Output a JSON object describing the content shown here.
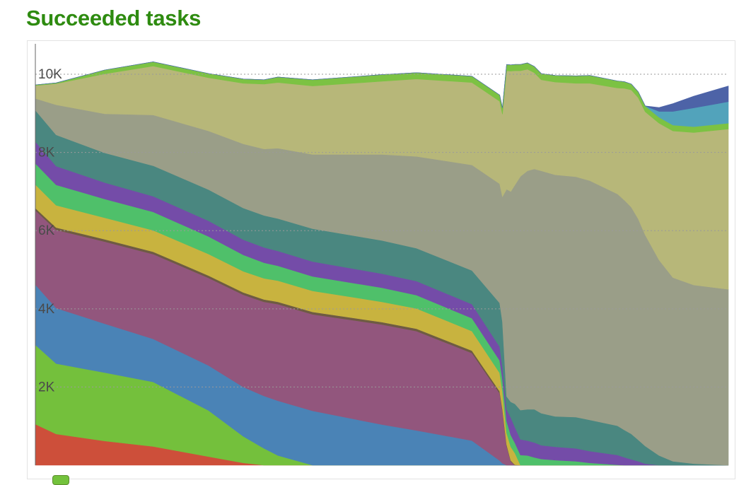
{
  "title": "Succeeded tasks",
  "colors": {
    "title": "#2e8b10",
    "grid": "#9a9a9a",
    "axis": "#666666",
    "tick_text": "#4a4a4a",
    "legend_swatch": "#73c23c"
  },
  "chart_data": {
    "type": "area",
    "stacked": true,
    "title": "Succeeded tasks",
    "xlabel": "",
    "ylabel": "",
    "ylim": [
      0,
      10200
    ],
    "yticks": [
      2000,
      4000,
      6000,
      8000,
      10000
    ],
    "ytick_labels": [
      "2K",
      "4K",
      "6K",
      "8K",
      "10K"
    ],
    "grid": true,
    "x": [
      0,
      3,
      10,
      17,
      25,
      30,
      33,
      35,
      40,
      50,
      55,
      63,
      67,
      67.4,
      68,
      68.6,
      69.2,
      70,
      71,
      72,
      73,
      75,
      78,
      80,
      84,
      85,
      86,
      87,
      88,
      90,
      92,
      95,
      100
    ],
    "series": [
      {
        "name": "",
        "color": "#cd4f3a",
        "values": [
          1050,
          800,
          620,
          480,
          220,
          60,
          0,
          0,
          0,
          0,
          0,
          0,
          0,
          0,
          0,
          0,
          0,
          0,
          0,
          0,
          0,
          0,
          0,
          0,
          0,
          0,
          0,
          0,
          0,
          0,
          0,
          0,
          0
        ]
      },
      {
        "name": "",
        "color": "#74c03c",
        "values": [
          2030,
          1800,
          1750,
          1650,
          1180,
          680,
          430,
          250,
          0,
          0,
          0,
          0,
          0,
          0,
          0,
          0,
          0,
          0,
          0,
          0,
          0,
          0,
          0,
          0,
          0,
          0,
          0,
          0,
          0,
          0,
          0,
          0,
          0
        ]
      },
      {
        "name": "",
        "color": "#4a83b6",
        "values": [
          1540,
          1420,
          1250,
          1100,
          1150,
          1260,
          1340,
          1400,
          1390,
          1040,
          890,
          630,
          120,
          50,
          0,
          0,
          0,
          0,
          0,
          0,
          0,
          0,
          0,
          0,
          0,
          0,
          0,
          0,
          0,
          0,
          0,
          0,
          0
        ]
      },
      {
        "name": "",
        "color": "#92567d",
        "values": [
          1900,
          2000,
          2100,
          2170,
          2240,
          2360,
          2410,
          2470,
          2470,
          2560,
          2540,
          2240,
          1720,
          1340,
          500,
          100,
          0,
          0,
          0,
          0,
          0,
          0,
          0,
          0,
          0,
          0,
          0,
          0,
          0,
          0,
          0,
          0,
          0
        ]
      },
      {
        "name": "",
        "color": "#6e5b43",
        "values": [
          60,
          60,
          60,
          60,
          60,
          60,
          60,
          60,
          60,
          60,
          60,
          60,
          50,
          50,
          30,
          20,
          10,
          0,
          0,
          0,
          0,
          0,
          0,
          0,
          0,
          0,
          0,
          0,
          0,
          0,
          0,
          0,
          0
        ]
      },
      {
        "name": "",
        "color": "#c8b33f",
        "values": [
          600,
          570,
          550,
          550,
          550,
          540,
          540,
          540,
          540,
          520,
          520,
          500,
          470,
          450,
          300,
          350,
          300,
          0,
          0,
          0,
          0,
          0,
          0,
          0,
          0,
          0,
          0,
          0,
          0,
          0,
          0,
          0,
          0
        ]
      },
      {
        "name": "",
        "color": "#4fc06a",
        "values": [
          540,
          520,
          480,
          470,
          450,
          420,
          400,
          380,
          370,
          360,
          340,
          330,
          320,
          310,
          300,
          300,
          260,
          260,
          250,
          200,
          160,
          130,
          100,
          60,
          10,
          0,
          0,
          0,
          0,
          0,
          0,
          0,
          0
        ]
      },
      {
        "name": "",
        "color": "#744ca8",
        "values": [
          560,
          480,
          420,
          400,
          400,
          390,
          390,
          380,
          380,
          360,
          360,
          360,
          350,
          320,
          300,
          450,
          400,
          400,
          380,
          380,
          350,
          340,
          330,
          300,
          250,
          200,
          150,
          100,
          40,
          0,
          0,
          0,
          0
        ]
      },
      {
        "name": "",
        "color": "#4a8780",
        "values": [
          800,
          800,
          760,
          780,
          800,
          810,
          820,
          830,
          840,
          850,
          840,
          860,
          1120,
          1150,
          330,
          400,
          600,
          750,
          800,
          850,
          820,
          780,
          800,
          800,
          750,
          700,
          650,
          550,
          450,
          250,
          100,
          40,
          0
        ]
      },
      {
        "name": "",
        "color": "#9a9e88",
        "values": [
          300,
          770,
          1000,
          1300,
          1500,
          1640,
          1700,
          1800,
          1900,
          2200,
          2350,
          2700,
          3050,
          3200,
          5300,
          5380,
          5600,
          5980,
          6100,
          6150,
          6200,
          6180,
          6150,
          6120,
          5930,
          5880,
          5800,
          5650,
          5400,
          5000,
          4700,
          4570,
          4500
        ]
      },
      {
        "name": "",
        "color": "#b7b779",
        "values": [
          330,
          540,
          1020,
          1250,
          1360,
          1550,
          1660,
          1680,
          1750,
          1870,
          1980,
          2110,
          2110,
          2110,
          3030,
          3080,
          2920,
          2700,
          2600,
          2460,
          2330,
          2370,
          2390,
          2490,
          2710,
          2860,
          3000,
          3100,
          3150,
          3500,
          3750,
          3900,
          4100
        ]
      },
      {
        "name": "",
        "color": "#7cc243",
        "values": [
          20,
          20,
          100,
          110,
          110,
          110,
          110,
          140,
          160,
          170,
          160,
          160,
          160,
          160,
          160,
          160,
          160,
          160,
          160,
          160,
          160,
          170,
          190,
          200,
          180,
          170,
          150,
          150,
          150,
          150,
          150,
          150,
          150
        ]
      },
      {
        "name": "",
        "color": "#52a3bb",
        "values": [
          0,
          0,
          0,
          0,
          0,
          0,
          0,
          0,
          0,
          0,
          0,
          0,
          0,
          0,
          0,
          0,
          0,
          0,
          0,
          0,
          0,
          0,
          0,
          0,
          0,
          0,
          0,
          0,
          0,
          150,
          350,
          480,
          550
        ]
      },
      {
        "name": "",
        "color": "#4d63a7",
        "values": [
          0,
          0,
          0,
          0,
          0,
          0,
          0,
          0,
          0,
          0,
          0,
          0,
          0,
          0,
          0,
          0,
          0,
          0,
          0,
          0,
          0,
          0,
          0,
          0,
          0,
          0,
          0,
          0,
          0,
          100,
          200,
          300,
          400
        ]
      }
    ],
    "legend_placement": "bottom"
  }
}
